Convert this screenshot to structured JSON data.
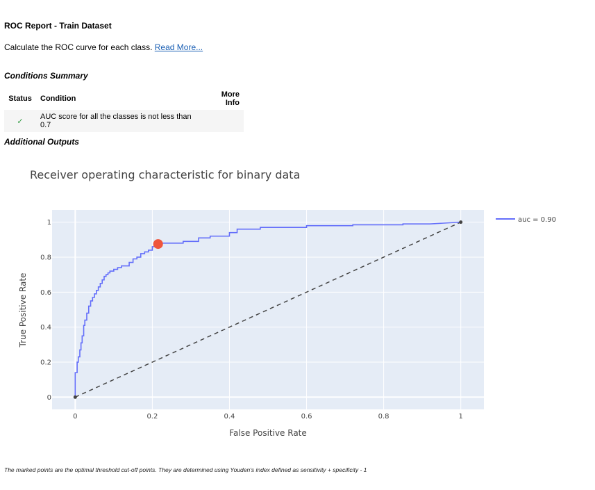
{
  "report": {
    "title": "ROC Report - Train Dataset",
    "description": "Calculate the ROC curve for each class.",
    "read_more": "Read More..."
  },
  "conditions": {
    "heading": "Conditions Summary",
    "headers": {
      "status": "Status",
      "condition": "Condition",
      "more_info": "More Info"
    },
    "rows": [
      {
        "status": "✓",
        "condition": "AUC score for all the classes is not less than 0.7",
        "more_info": ""
      }
    ]
  },
  "additional_outputs": {
    "heading": "Additional Outputs"
  },
  "footnote": "The marked points are the optimal threshold cut-off points. They are determined using Youden's index defined as sensitivity + specificity - 1",
  "chart_data": {
    "type": "line",
    "title": "Receiver operating characteristic for binary data",
    "xlabel": "False Positive Rate",
    "ylabel": "True Positive Rate",
    "xlim": [
      -0.06,
      1.06
    ],
    "ylim": [
      -0.07,
      1.07
    ],
    "x_ticks": [
      0,
      0.2,
      0.4,
      0.6,
      0.8,
      1
    ],
    "x_tick_labels": [
      "0",
      "0.2",
      "0.4",
      "0.6",
      "0.8",
      "1"
    ],
    "y_ticks": [
      0,
      0.2,
      0.4,
      0.6,
      0.8,
      1
    ],
    "y_tick_labels": [
      "0",
      "0.2",
      "0.4",
      "0.6",
      "0.8",
      "1"
    ],
    "grid": true,
    "legend_position": "right",
    "series": [
      {
        "name": "auc = 0.90",
        "color": "#636efa",
        "x": [
          0,
          0,
          0.005,
          0.005,
          0.008,
          0.008,
          0.012,
          0.012,
          0.015,
          0.015,
          0.018,
          0.018,
          0.022,
          0.022,
          0.025,
          0.025,
          0.03,
          0.03,
          0.035,
          0.035,
          0.04,
          0.04,
          0.045,
          0.045,
          0.05,
          0.05,
          0.055,
          0.055,
          0.06,
          0.06,
          0.065,
          0.065,
          0.07,
          0.07,
          0.075,
          0.075,
          0.08,
          0.08,
          0.085,
          0.085,
          0.09,
          0.09,
          0.1,
          0.1,
          0.11,
          0.11,
          0.12,
          0.12,
          0.14,
          0.14,
          0.15,
          0.15,
          0.16,
          0.16,
          0.17,
          0.17,
          0.18,
          0.18,
          0.19,
          0.19,
          0.2,
          0.2,
          0.215,
          0.215,
          0.28,
          0.28,
          0.32,
          0.32,
          0.35,
          0.35,
          0.4,
          0.4,
          0.42,
          0.42,
          0.48,
          0.48,
          0.6,
          0.6,
          0.72,
          0.72,
          0.85,
          0.85,
          0.92,
          1
        ],
        "y": [
          0,
          0.14,
          0.14,
          0.2,
          0.2,
          0.23,
          0.23,
          0.27,
          0.27,
          0.31,
          0.31,
          0.35,
          0.35,
          0.41,
          0.41,
          0.44,
          0.44,
          0.48,
          0.48,
          0.52,
          0.52,
          0.55,
          0.55,
          0.57,
          0.57,
          0.59,
          0.59,
          0.61,
          0.61,
          0.63,
          0.63,
          0.65,
          0.65,
          0.67,
          0.67,
          0.69,
          0.69,
          0.7,
          0.7,
          0.71,
          0.71,
          0.72,
          0.72,
          0.73,
          0.73,
          0.74,
          0.74,
          0.75,
          0.75,
          0.77,
          0.77,
          0.79,
          0.79,
          0.8,
          0.8,
          0.82,
          0.82,
          0.83,
          0.83,
          0.84,
          0.84,
          0.86,
          0.86,
          0.88,
          0.88,
          0.89,
          0.89,
          0.91,
          0.91,
          0.92,
          0.92,
          0.94,
          0.94,
          0.96,
          0.96,
          0.97,
          0.97,
          0.98,
          0.98,
          0.985,
          0.985,
          0.99,
          0.99,
          1
        ]
      }
    ],
    "reference_line": {
      "x": [
        0,
        1
      ],
      "y": [
        0,
        1
      ],
      "color": "#444444",
      "style": "dashed"
    },
    "optimal_point": {
      "x": 0.215,
      "y": 0.875,
      "color": "#ef553b"
    }
  }
}
